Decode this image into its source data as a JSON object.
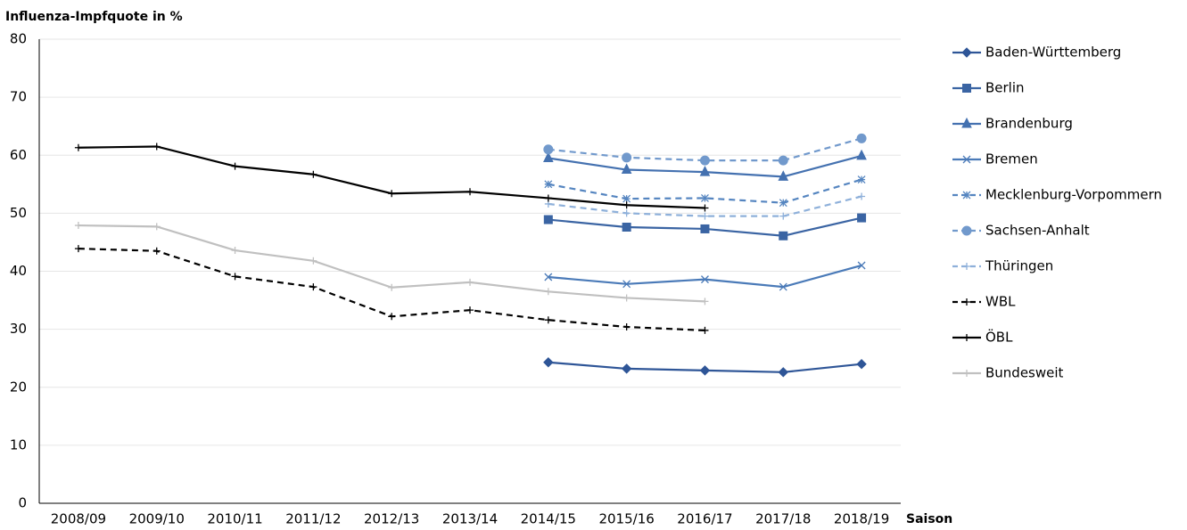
{
  "chart_data": {
    "type": "line",
    "title": "Influenza-Impfquote in %",
    "x_label": "Saison",
    "categories": [
      "2008/09",
      "2009/10",
      "2010/11",
      "2011/12",
      "2012/13",
      "2013/14",
      "2014/15",
      "2015/16",
      "2016/17",
      "2017/18",
      "2018/19"
    ],
    "ylim": [
      0,
      80
    ],
    "yticks": [
      0,
      10,
      20,
      30,
      40,
      50,
      60,
      70,
      80
    ],
    "grid": true,
    "legend": "right",
    "series": [
      {
        "name": "Baden-Württemberg",
        "color": "#2e5597",
        "marker": "diamond",
        "dash": false,
        "values": [
          null,
          null,
          null,
          null,
          null,
          null,
          24.3,
          23.2,
          22.9,
          22.6,
          24.0
        ]
      },
      {
        "name": "Berlin",
        "color": "#3a64a3",
        "marker": "square",
        "dash": false,
        "values": [
          null,
          null,
          null,
          null,
          null,
          null,
          48.9,
          47.6,
          47.3,
          46.1,
          49.2
        ]
      },
      {
        "name": "Brandenburg",
        "color": "#4471b0",
        "marker": "triangle",
        "dash": false,
        "values": [
          null,
          null,
          null,
          null,
          null,
          null,
          59.5,
          57.5,
          57.1,
          56.3,
          59.9
        ]
      },
      {
        "name": "Bremen",
        "color": "#4a7ab8",
        "marker": "x",
        "dash": false,
        "values": [
          null,
          null,
          null,
          null,
          null,
          null,
          39.0,
          37.8,
          38.6,
          37.3,
          41.0
        ]
      },
      {
        "name": "Mecklenburg-Vorpommern",
        "color": "#5585c0",
        "marker": "asterisk",
        "dash": true,
        "values": [
          null,
          null,
          null,
          null,
          null,
          null,
          55.0,
          52.5,
          52.6,
          51.8,
          55.8
        ]
      },
      {
        "name": "Sachsen-Anhalt",
        "color": "#7199cc",
        "marker": "circle",
        "dash": true,
        "values": [
          null,
          null,
          null,
          null,
          null,
          null,
          61.0,
          59.6,
          59.1,
          59.1,
          62.9
        ]
      },
      {
        "name": "Thüringen",
        "color": "#8eb0da",
        "marker": "plus",
        "dash": true,
        "values": [
          null,
          null,
          null,
          null,
          null,
          null,
          51.6,
          50.0,
          49.5,
          49.5,
          52.9
        ]
      },
      {
        "name": "WBL",
        "color": "#000000",
        "marker": "plus",
        "dash": true,
        "values": [
          43.9,
          43.5,
          39.1,
          37.3,
          32.2,
          33.3,
          31.6,
          30.4,
          29.8,
          null,
          null
        ]
      },
      {
        "name": "ÖBL",
        "color": "#000000",
        "marker": "plus",
        "dash": false,
        "values": [
          61.3,
          61.5,
          58.1,
          56.7,
          53.4,
          53.7,
          52.6,
          51.4,
          50.9,
          null,
          null
        ]
      },
      {
        "name": "Bundesweit",
        "color": "#c0c0c0",
        "marker": "plus",
        "dash": false,
        "values": [
          47.9,
          47.7,
          43.6,
          41.8,
          37.2,
          38.1,
          36.5,
          35.4,
          34.8,
          null,
          null
        ]
      }
    ]
  }
}
